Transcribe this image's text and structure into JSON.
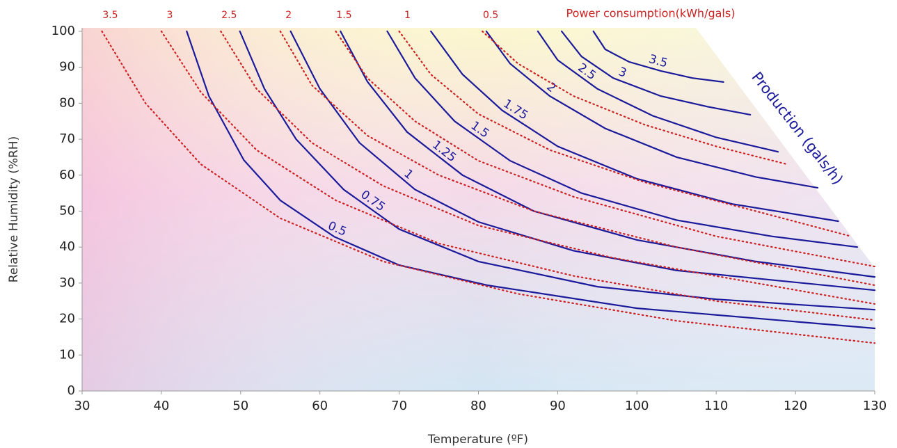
{
  "chart_data": {
    "type": "line",
    "xlabel": "Temperature (ºF)",
    "ylabel": "Relative Humidity (%RH)",
    "power_label": "Power consumption(kWh/gals)",
    "production_label": "Production (gals/h)",
    "xlim": [
      30,
      130
    ],
    "ylim": [
      0,
      100
    ],
    "xticks": [
      30,
      40,
      50,
      60,
      70,
      80,
      90,
      100,
      110,
      120,
      130
    ],
    "yticks": [
      0,
      10,
      20,
      30,
      40,
      50,
      60,
      70,
      80,
      90,
      100
    ],
    "series": [
      {
        "name": "0.5",
        "color": "#1a1a9a",
        "linestyle": "solid",
        "x": [
          43.2,
          46,
          50.4,
          55,
          61.8,
          70,
          81.1,
          100,
          130
        ],
        "y": [
          100,
          82,
          64.2,
          53,
          42.9,
          35,
          29.4,
          23,
          17.4
        ]
      },
      {
        "name": "0.75",
        "color": "#1a1a9a",
        "linestyle": "solid",
        "x": [
          49.9,
          53,
          57,
          63,
          70,
          80,
          95,
          110,
          130
        ],
        "y": [
          100,
          84,
          70,
          56,
          45,
          36,
          29,
          25.5,
          22.6
        ]
      },
      {
        "name": "1",
        "color": "#1a1a9a",
        "linestyle": "solid",
        "x": [
          56.3,
          60,
          65,
          72,
          80,
          92,
          105,
          130
        ],
        "y": [
          100,
          84,
          69,
          56,
          47,
          39,
          33.5,
          28
        ]
      },
      {
        "name": "1.25",
        "color": "#1a1a9a",
        "linestyle": "solid",
        "x": [
          62.6,
          66,
          71,
          78,
          87,
          100,
          115,
          130
        ],
        "y": [
          100,
          86,
          72,
          60,
          50,
          42,
          36,
          31.7
        ]
      },
      {
        "name": "1.5",
        "color": "#1a1a9a",
        "linestyle": "solid",
        "x": [
          68.5,
          72,
          77,
          84,
          93,
          105,
          117,
          127.8
        ],
        "y": [
          100,
          87,
          75,
          64,
          55,
          47.5,
          43,
          40
        ]
      },
      {
        "name": "1.75",
        "color": "#1a1a9a",
        "linestyle": "solid",
        "x": [
          74,
          78,
          83,
          90,
          100,
          112,
          125.4
        ],
        "y": [
          100,
          88,
          78,
          68,
          59,
          52,
          47.2
        ]
      },
      {
        "name": "2",
        "color": "#1a1a9a",
        "linestyle": "solid",
        "x": [
          81,
          84,
          89,
          96,
          105,
          115,
          122.8
        ],
        "y": [
          100,
          91,
          82,
          73,
          65,
          59.5,
          56.5
        ]
      },
      {
        "name": "2.5",
        "color": "#1a1a9a",
        "linestyle": "solid",
        "x": [
          87.5,
          90,
          95,
          102,
          110,
          117.8
        ],
        "y": [
          100,
          92,
          84,
          76.5,
          70.5,
          66.5
        ]
      },
      {
        "name": "3",
        "color": "#1a1a9a",
        "linestyle": "solid",
        "x": [
          90.5,
          93,
          97,
          103,
          109,
          114.3
        ],
        "y": [
          100,
          93,
          87,
          82,
          79,
          76.8
        ]
      },
      {
        "name": "3.5",
        "color": "#1a1a9a",
        "linestyle": "solid",
        "x": [
          94.5,
          96,
          99,
          103,
          107,
          110.9
        ],
        "y": [
          100,
          95,
          91.5,
          89,
          87,
          85.9
        ]
      },
      {
        "name": "3.5",
        "color": "#cc2222",
        "linestyle": "dotted",
        "x": [
          32.5,
          38,
          45,
          55,
          68,
          85,
          105,
          130
        ],
        "y": [
          100,
          80,
          63,
          48,
          36,
          27,
          19.5,
          13.3
        ]
      },
      {
        "name": "3",
        "color": "#cc2222",
        "linestyle": "dotted",
        "x": [
          40,
          45,
          52,
          62,
          75,
          92,
          110,
          130
        ],
        "y": [
          100,
          83,
          67,
          53,
          41,
          32,
          25,
          19.7
        ]
      },
      {
        "name": "2.5",
        "color": "#cc2222",
        "linestyle": "dotted",
        "x": [
          47.5,
          52,
          59,
          68,
          80,
          97,
          130
        ],
        "y": [
          100,
          84,
          69,
          57,
          46,
          37,
          24.2
        ]
      },
      {
        "name": "2",
        "color": "#cc2222",
        "linestyle": "dotted",
        "x": [
          55,
          59,
          66,
          75,
          87,
          105,
          130
        ],
        "y": [
          100,
          85,
          71,
          60,
          50,
          40,
          29.4
        ]
      },
      {
        "name": "1.5",
        "color": "#cc2222",
        "linestyle": "dotted",
        "x": [
          62,
          66,
          72,
          80,
          92,
          110,
          130
        ],
        "y": [
          100,
          87,
          75,
          64,
          54,
          43,
          34.6
        ]
      },
      {
        "name": "1",
        "color": "#cc2222",
        "linestyle": "dotted",
        "x": [
          70,
          74,
          80,
          89,
          101,
          115,
          127
        ],
        "y": [
          100,
          88,
          77,
          67,
          58,
          50,
          43
        ]
      },
      {
        "name": "0.5",
        "color": "#cc2222",
        "linestyle": "dotted",
        "x": [
          80.5,
          85,
          92,
          101,
          110,
          119
        ],
        "y": [
          100,
          91,
          82,
          74,
          68,
          63
        ]
      }
    ]
  }
}
